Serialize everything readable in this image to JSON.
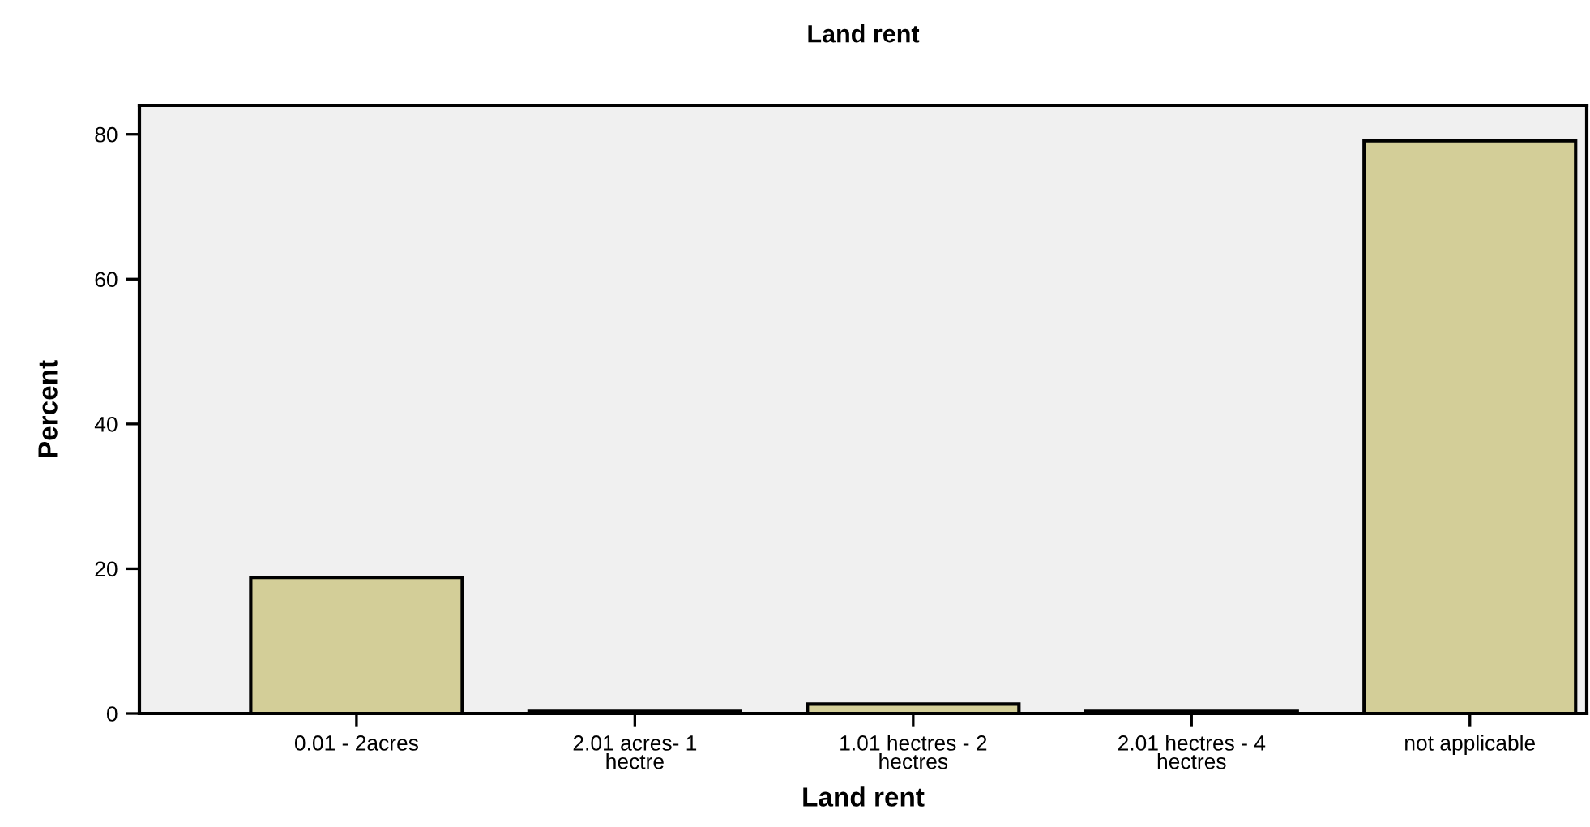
{
  "chart_data": {
    "type": "bar",
    "title": "Land rent",
    "xlabel": "Land rent",
    "ylabel": "Percent",
    "categories": [
      "0.01 - 2acres",
      "2.01 acres- 1\nhectre",
      "1.01 hectres - 2\nhectres",
      "2.01 hectres - 4\nhectres",
      "not applicable"
    ],
    "values": [
      18.8,
      0.3,
      1.3,
      0.3,
      79.1
    ],
    "color": "#d3ce98",
    "ylim": [
      0,
      84
    ],
    "yticks": [
      0,
      20,
      40,
      60,
      80
    ],
    "grid": false,
    "legend": false
  }
}
